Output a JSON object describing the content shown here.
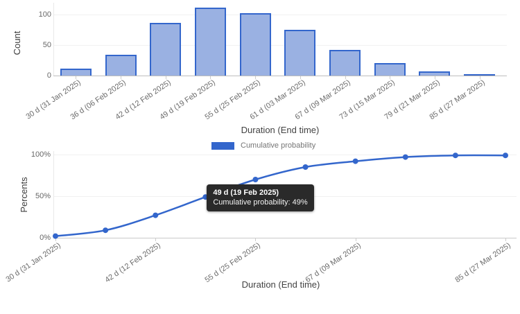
{
  "legend": {
    "label": "Cumulative probability"
  },
  "tooltip": {
    "title": "49 d (19 Feb 2025)",
    "body": "Cumulative probability: 49%"
  },
  "top_chart": {
    "y_axis_title": "Count",
    "x_axis_title": "Duration (End time)",
    "y_tick_labels": [
      "0",
      "50",
      "100"
    ]
  },
  "bottom_chart": {
    "y_axis_title": "Percents",
    "x_axis_title": "Duration (End time)",
    "y_tick_labels": [
      "0%",
      "50%",
      "100%"
    ],
    "x_ticks": [
      {
        "index": 0,
        "label": "30 d (31 Jan 2025)"
      },
      {
        "index": 2,
        "label": "42 d (12 Feb 2025)"
      },
      {
        "index": 4,
        "label": "55 d (25 Feb 2025)"
      },
      {
        "index": 6,
        "label": "67 d (09 Mar 2025)"
      },
      {
        "index": 9,
        "label": "85 d (27 Mar 2025)"
      }
    ]
  },
  "colors": {
    "bar_fill": "#9ab1e2",
    "bar_border": "#3366cc",
    "line": "#3366cc",
    "gridline": "#f1f1f1",
    "tooltip_bg": "#2a2a2a"
  },
  "chart_data": [
    {
      "type": "bar",
      "title": "",
      "categories": [
        "30 d (31 Jan 2025)",
        "36 d (06 Feb 2025)",
        "42 d (12 Feb 2025)",
        "49 d (19 Feb 2025)",
        "55 d (25 Feb 2025)",
        "61 d (03 Mar 2025)",
        "67 d (09 Mar 2025)",
        "73 d (15 Mar 2025)",
        "79 d (21 Mar 2025)",
        "85 d (27 Mar 2025)"
      ],
      "values": [
        11,
        34,
        86,
        111,
        102,
        75,
        42,
        20,
        7,
        2
      ],
      "xlabel": "Duration (End time)",
      "ylabel": "Count",
      "ylim": [
        0,
        117
      ],
      "y_gridlines": [
        0,
        50,
        100
      ],
      "grid": true,
      "legend_position": "none"
    },
    {
      "type": "line",
      "title": "",
      "categories": [
        "30 d (31 Jan 2025)",
        "36 d (06 Feb 2025)",
        "42 d (12 Feb 2025)",
        "49 d (19 Feb 2025)",
        "55 d (25 Feb 2025)",
        "61 d (03 Mar 2025)",
        "67 d (09 Mar 2025)",
        "73 d (15 Mar 2025)",
        "79 d (21 Mar 2025)",
        "85 d (27 Mar 2025)"
      ],
      "series": [
        {
          "name": "Cumulative probability",
          "values": [
            2,
            9,
            27,
            49,
            70,
            85,
            92,
            97,
            99,
            99
          ]
        }
      ],
      "xlabel": "Duration (End time)",
      "ylabel": "Percents",
      "ylim": [
        0,
        100
      ],
      "y_gridlines": [
        0,
        50,
        100
      ],
      "grid": true,
      "legend_position": "top",
      "markers": true,
      "highlighted_point": {
        "index": 3,
        "tooltip_title": "49 d (19 Feb 2025)",
        "tooltip_body": "Cumulative probability: 49%"
      }
    }
  ]
}
